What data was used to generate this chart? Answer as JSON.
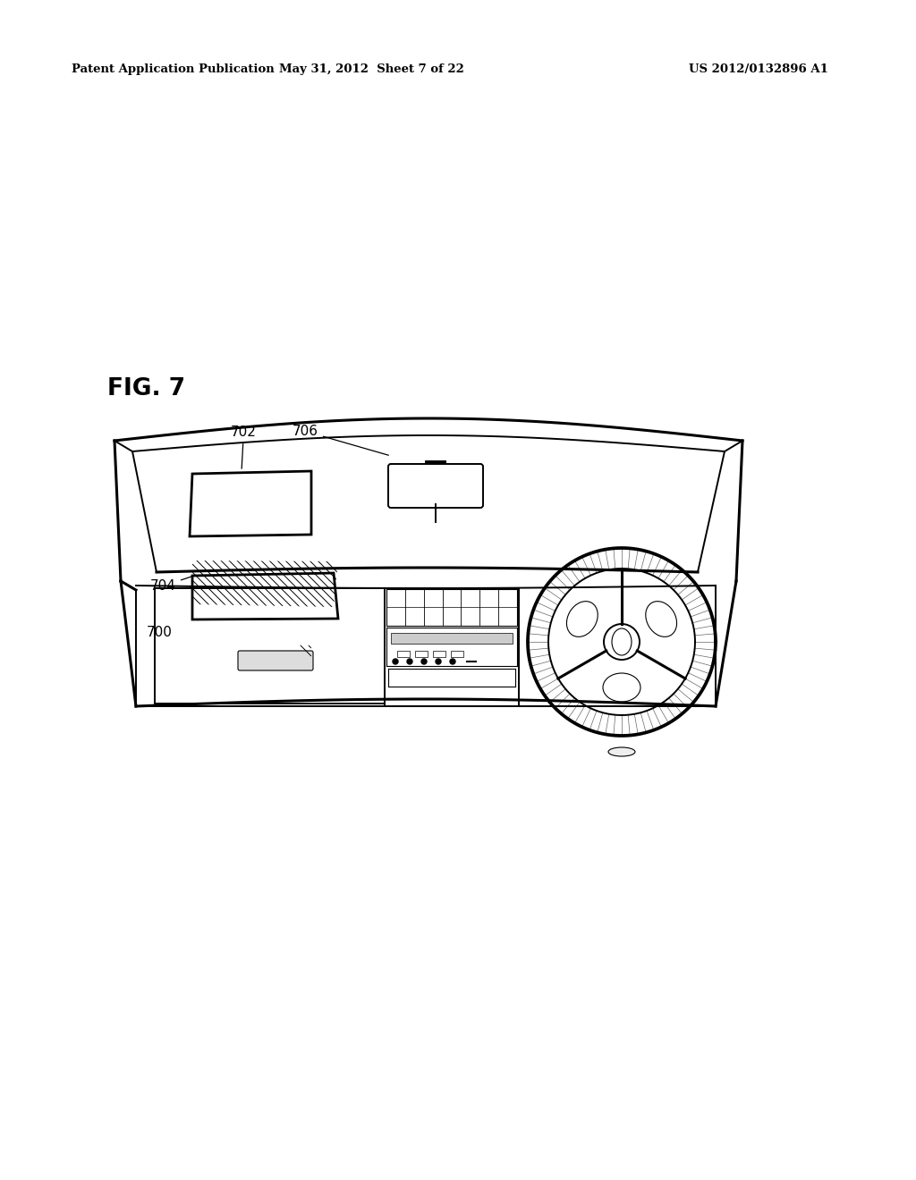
{
  "bg_color": "#ffffff",
  "header_left": "Patent Application Publication",
  "header_mid": "May 31, 2012  Sheet 7 of 22",
  "header_right": "US 2012/0132896 A1",
  "fig_label": "FIG. 7"
}
